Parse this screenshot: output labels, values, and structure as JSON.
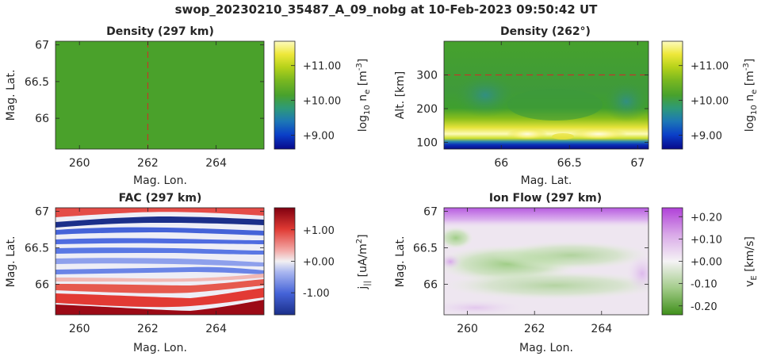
{
  "figure": {
    "suptitle": "swop_20230210_35487_A_09_nobg at 10-Feb-2023 09:50:42 UT"
  },
  "chart_data": [
    {
      "type": "heatmap",
      "title": "Density (297 km)",
      "xlabel": "Mag. Lon.",
      "ylabel": "Mag. Lat.",
      "xlim": [
        259.3,
        265.4
      ],
      "ylim": [
        65.58,
        67.05
      ],
      "xticks": [
        "260",
        "262",
        "264"
      ],
      "yticks": [
        "66",
        "66.5",
        "67"
      ],
      "marker_line": {
        "orientation": "vertical",
        "x": 262,
        "color": "#d62728"
      },
      "field": {
        "description_values": "nearly uniform",
        "log10_ne": 10.05
      },
      "colorbar": {
        "label": "log10 ne [m-3]",
        "ticks": [
          "+9.00",
          "+10.00",
          "+11.00"
        ],
        "tick_values": [
          9,
          10,
          11
        ],
        "range": [
          8.6,
          11.7
        ],
        "colormap": "blue-green-yellow"
      }
    },
    {
      "type": "heatmap",
      "title": "Density (262°)",
      "xlabel": "Mag. Lat.",
      "ylabel": "Alt. [km]",
      "xlim": [
        65.58,
        67.08
      ],
      "ylim": [
        80,
        400
      ],
      "xticks": [
        "66",
        "66.5",
        "67"
      ],
      "yticks": [
        "100",
        "200",
        "300"
      ],
      "marker_line": {
        "orientation": "horizontal",
        "y": 300,
        "color": "#d62728"
      },
      "colorbar": {
        "label": "log10 ne [m-3]",
        "ticks": [
          "+9.00",
          "+10.00",
          "+11.00"
        ],
        "tick_values": [
          9,
          10,
          11
        ],
        "range": [
          8.6,
          11.7
        ],
        "colormap": "blue-green-yellow"
      }
    },
    {
      "type": "heatmap",
      "title": "FAC (297 km)",
      "xlabel": "Mag. Lon.",
      "ylabel": "Mag. Lat.",
      "xlim": [
        259.3,
        265.4
      ],
      "ylim": [
        65.58,
        67.05
      ],
      "xticks": [
        "260",
        "262",
        "264"
      ],
      "yticks": [
        "66",
        "66.5",
        "67"
      ],
      "colorbar": {
        "label": "j|| [uA/m2]",
        "ticks": [
          "-1.00",
          "+0.00",
          "+1.00"
        ],
        "tick_values": [
          -1,
          0,
          1
        ],
        "range": [
          -1.7,
          1.7
        ],
        "colormap": "blue-white-red"
      }
    },
    {
      "type": "heatmap",
      "title": "Ion Flow (297 km)",
      "xlabel": "Mag. Lon.",
      "ylabel": "Mag. Lat.",
      "xlim": [
        259.3,
        265.4
      ],
      "ylim": [
        65.58,
        67.05
      ],
      "xticks": [
        "260",
        "262",
        "264"
      ],
      "yticks": [
        "66",
        "66.5",
        "67"
      ],
      "colorbar": {
        "label": "vE [km/s]",
        "ticks": [
          "-0.20",
          "-0.10",
          "+0.00",
          "+0.10",
          "+0.20"
        ],
        "tick_values": [
          -0.2,
          -0.1,
          0,
          0.1,
          0.2
        ],
        "range": [
          -0.24,
          0.24
        ],
        "colormap": "green-white-purple"
      }
    }
  ],
  "colors": {
    "density_uniform": "#4aa12b",
    "marker_line": "#d62728"
  }
}
